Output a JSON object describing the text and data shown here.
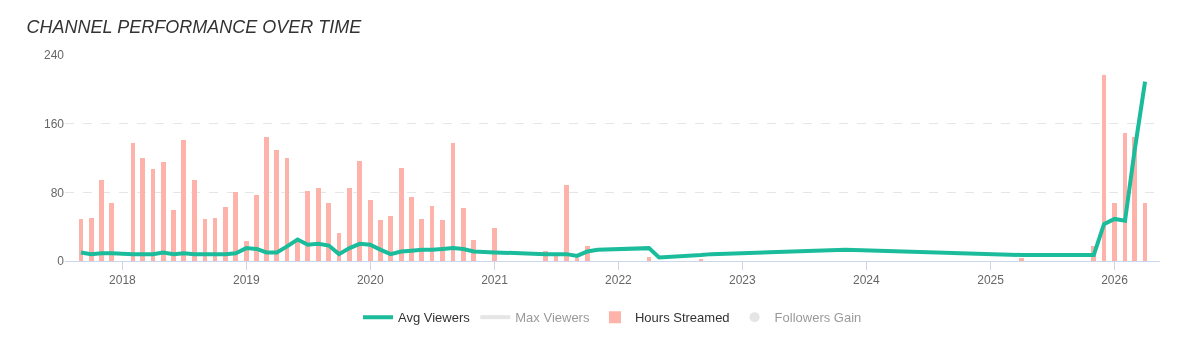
{
  "chart_data": {
    "type": "bar",
    "title": "CHANNEL PERFORMANCE OVER TIME",
    "xlim": [
      "2017-07-16",
      "2026-05-15"
    ],
    "xticks": [
      "2018",
      "2019",
      "2020",
      "2021",
      "2022",
      "2023",
      "2024",
      "2025",
      "2026"
    ],
    "ylim": [
      0,
      240
    ],
    "yticks": [
      0,
      80,
      160,
      240
    ],
    "grid": "y",
    "legend": "bottom",
    "series": [
      {
        "name": "Avg Viewers",
        "type": "line",
        "color": "#1bbc9b",
        "marker": "none",
        "line_style": "solid",
        "x": [
          "2017-09",
          "2017-10",
          "2017-11",
          "2017-12",
          "2018-02",
          "2018-03",
          "2018-04",
          "2018-05",
          "2018-06",
          "2018-07",
          "2018-08",
          "2018-09",
          "2018-10",
          "2018-11",
          "2018-12",
          "2019-01",
          "2019-02",
          "2019-03",
          "2019-04",
          "2019-05",
          "2019-06",
          "2019-07",
          "2019-08",
          "2019-09",
          "2019-10",
          "2019-11",
          "2019-12",
          "2020-01",
          "2020-02",
          "2020-03",
          "2020-04",
          "2020-05",
          "2020-06",
          "2020-07",
          "2020-08",
          "2020-09",
          "2020-10",
          "2020-11",
          "2021-01",
          "2021-06",
          "2021-07",
          "2021-08",
          "2021-09",
          "2021-10",
          "2021-11",
          "2022-04",
          "2022-05",
          "2022-09",
          "2022-10",
          "2023-11",
          "2025-04",
          "2025-11",
          "2025-12",
          "2026-01",
          "2026-02",
          "2026-03",
          "2026-04"
        ],
        "values": [
          10,
          8,
          9,
          9,
          8,
          8,
          8,
          10,
          8,
          9,
          8,
          8,
          8,
          8,
          9,
          15,
          14,
          10,
          10,
          17,
          25,
          19,
          20,
          18,
          8,
          15,
          20,
          19,
          13,
          8,
          11,
          12,
          13,
          13,
          14,
          15,
          14,
          11,
          10,
          8,
          8,
          8,
          6,
          11,
          13,
          15,
          4,
          7,
          8,
          13,
          7,
          7,
          43,
          49,
          47,
          128,
          209
        ]
      },
      {
        "name": "Max Viewers",
        "type": "line",
        "color": "#cccccc"
      },
      {
        "name": "Hours Streamed",
        "color": "#fdb3a9",
        "x": [
          "2017-09",
          "2017-10",
          "2017-11",
          "2017-12",
          "2018-02",
          "2018-03",
          "2018-04",
          "2018-05",
          "2018-06",
          "2018-07",
          "2018-08",
          "2018-09",
          "2018-10",
          "2018-11",
          "2018-12",
          "2019-01",
          "2019-02",
          "2019-03",
          "2019-04",
          "2019-05",
          "2019-06",
          "2019-07",
          "2019-08",
          "2019-09",
          "2019-10",
          "2019-11",
          "2019-12",
          "2020-01",
          "2020-02",
          "2020-03",
          "2020-04",
          "2020-05",
          "2020-06",
          "2020-07",
          "2020-08",
          "2020-09",
          "2020-10",
          "2020-11",
          "2021-01",
          "2021-06",
          "2021-07",
          "2021-08",
          "2021-09",
          "2021-10",
          "2021-11",
          "2022-04",
          "2022-09",
          "2025-04",
          "2025-11",
          "2025-12",
          "2026-01",
          "2026-02",
          "2026-03",
          "2026-04"
        ],
        "values": [
          49,
          50,
          94,
          68,
          137,
          120,
          107,
          115,
          59,
          141,
          94,
          49,
          50,
          63,
          80,
          23,
          77,
          144,
          129,
          120,
          22,
          82,
          85,
          68,
          33,
          85,
          116,
          71,
          48,
          52,
          108,
          75,
          49,
          64,
          48,
          138,
          62,
          24,
          38,
          12,
          6,
          89,
          4,
          18,
          null,
          5,
          2,
          4,
          17,
          217,
          68,
          149,
          145,
          67
        ]
      },
      {
        "name": "Followers Gain",
        "type": "scatter",
        "color": "#cccccc"
      }
    ]
  }
}
